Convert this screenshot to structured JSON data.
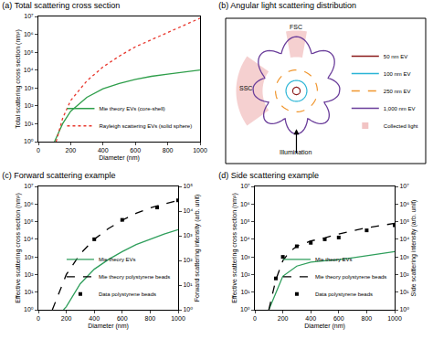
{
  "chart_data": [
    {
      "type": "line",
      "title": "(a) Total scattering cross section",
      "x_label": "Diameter (nm)",
      "y_label": "Total scattering cross section (nm²)",
      "log": "y",
      "grid": false,
      "legend": "lower right",
      "xlim": [
        0,
        1000
      ],
      "xticks": [
        0,
        200,
        400,
        600,
        800,
        1000
      ],
      "ylim": [
        1,
        10000000
      ],
      "yticks": [
        {
          "value": 1,
          "label": "10⁰"
        },
        {
          "value": 10,
          "label": "10¹"
        },
        {
          "value": 100,
          "label": "10²"
        },
        {
          "value": 1000,
          "label": "10³"
        },
        {
          "value": 10000,
          "label": "10⁴"
        },
        {
          "value": 100000,
          "label": "10⁵"
        },
        {
          "value": 1000000,
          "label": "10⁶"
        },
        {
          "value": 10000000,
          "label": "10⁷"
        }
      ],
      "series": [
        {
          "name": "Mie theory EVs (core-shell)",
          "color": "#2e9e4a",
          "line_style": "solid",
          "x": [
            100,
            150,
            200,
            300,
            400,
            500,
            600,
            700,
            800,
            900,
            1000
          ],
          "values": [
            1,
            10,
            50,
            300,
            900,
            1800,
            3000,
            4500,
            6000,
            8000,
            10000
          ]
        },
        {
          "name": "Rayleigh scattering EVs (solid sphere)",
          "color": "#e8382e",
          "line_style": "dotted",
          "x": [
            110,
            150,
            200,
            300,
            400,
            500,
            600,
            700,
            800,
            900,
            1000
          ],
          "values": [
            1,
            20,
            200,
            2500,
            15000,
            60000,
            200000,
            500000,
            1200000,
            3000000,
            8000000
          ]
        }
      ]
    },
    {
      "type": "diagram",
      "title": "(b) Angular light scattering distribution",
      "legend": "right",
      "annotations": [
        "SSC",
        "FSC",
        "Illumination"
      ],
      "series": [
        {
          "name": "50 nm EV",
          "color": "#8b1a1a",
          "line_style": "solid"
        },
        {
          "name": "100 nm EV",
          "color": "#2bb5d6",
          "line_style": "solid"
        },
        {
          "name": "250 nm EV",
          "color": "#f0962e",
          "line_style": "dashed"
        },
        {
          "name": "1,000 nm EV",
          "color": "#6a3d9a",
          "line_style": "solid"
        },
        {
          "name": "Collected light",
          "color": "#f2c4c4",
          "marker": "square"
        }
      ]
    },
    {
      "type": "line",
      "title": "(c) Forward scattering example",
      "x_label": "Diameter (nm)",
      "y_label": "Effective scattering cross section (nm²)",
      "y2_label": "Forward scattering intensity (arb. unit)",
      "log": "y",
      "grid": false,
      "legend": "lower right",
      "xlim": [
        0,
        1000
      ],
      "xticks": [
        0,
        200,
        400,
        600,
        800,
        1000
      ],
      "ylim": [
        1,
        10000000
      ],
      "yticks": [
        {
          "value": 1,
          "label": "10⁰"
        },
        {
          "value": 10,
          "label": "10¹"
        },
        {
          "value": 100,
          "label": "10²"
        },
        {
          "value": 1000,
          "label": "10³"
        },
        {
          "value": 10000,
          "label": "10⁴"
        },
        {
          "value": 100000,
          "label": "10⁵"
        },
        {
          "value": 1000000,
          "label": "10⁶"
        },
        {
          "value": 10000000,
          "label": "10⁷"
        }
      ],
      "y2lim": [
        1,
        100000
      ],
      "y2ticks": [
        {
          "value": 1,
          "label": "10⁰"
        },
        {
          "value": 10,
          "label": "10¹"
        },
        {
          "value": 100,
          "label": "10²"
        },
        {
          "value": 1000,
          "label": "10³"
        },
        {
          "value": 10000,
          "label": "10⁴"
        },
        {
          "value": 100000,
          "label": "10⁵"
        }
      ],
      "series": [
        {
          "name": "Mie theory EVs",
          "color": "#2e9e5b",
          "line_style": "solid",
          "x": [
            180,
            200,
            300,
            400,
            500,
            600,
            700,
            800,
            900,
            1000
          ],
          "values": [
            1,
            1.5,
            30,
            200,
            700,
            2000,
            5000,
            10000,
            20000,
            35000
          ]
        },
        {
          "name": "Mie theory polystyrene beads",
          "color": "#000000",
          "line_style": "dashed",
          "x": [
            100,
            200,
            300,
            400,
            500,
            600,
            700,
            800,
            900,
            1000
          ],
          "values": [
            1,
            100,
            1500,
            10000,
            40000,
            120000,
            300000,
            600000,
            1000000,
            1600000
          ]
        },
        {
          "name": "Data polystyrene beads",
          "color": "#000000",
          "type": "scatter",
          "marker": "square",
          "axis": "y2",
          "x": [
            400,
            600,
            850,
            1000
          ],
          "values": [
            720,
            4400,
            14000,
            27000
          ]
        }
      ]
    },
    {
      "type": "line",
      "title": "(d) Side scattering example",
      "x_label": "Diameter (nm)",
      "y_label": "Effective scattering cross section (nm²)",
      "y2_label": "Side scattering intensity (arb. unit)",
      "log": "y",
      "grid": false,
      "legend": "lower right",
      "xlim": [
        0,
        1000
      ],
      "xticks": [
        0,
        200,
        400,
        600,
        800,
        1000
      ],
      "ylim": [
        1,
        10000000
      ],
      "yticks": [
        {
          "value": 1,
          "label": "10⁰"
        },
        {
          "value": 10,
          "label": "10¹"
        },
        {
          "value": 100,
          "label": "10²"
        },
        {
          "value": 1000,
          "label": "10³"
        },
        {
          "value": 10000,
          "label": "10⁴"
        },
        {
          "value": 100000,
          "label": "10⁵"
        },
        {
          "value": 1000000,
          "label": "10⁶"
        },
        {
          "value": 10000000,
          "label": "10⁷"
        }
      ],
      "y2lim": [
        1,
        10000000
      ],
      "y2ticks": [
        {
          "value": 1,
          "label": "10⁰"
        },
        {
          "value": 10,
          "label": "10¹"
        },
        {
          "value": 100,
          "label": "10²"
        },
        {
          "value": 1000,
          "label": "10³"
        },
        {
          "value": 10000,
          "label": "10⁴"
        },
        {
          "value": 100000,
          "label": "10⁵"
        },
        {
          "value": 1000000,
          "label": "10⁶"
        },
        {
          "value": 10000000,
          "label": "10⁷"
        }
      ],
      "series": [
        {
          "name": "Mie theory EVs",
          "color": "#2e9e5b",
          "line_style": "solid",
          "x": [
            100,
            150,
            200,
            300,
            400,
            500,
            600,
            700,
            800,
            900,
            1000
          ],
          "values": [
            1,
            10,
            80,
            300,
            500,
            600,
            700,
            900,
            1200,
            1600,
            2000
          ]
        },
        {
          "name": "Mie theory polystyrene beads",
          "color": "#000000",
          "line_style": "dashed",
          "x": [
            100,
            150,
            200,
            250,
            300,
            400,
            500,
            600,
            700,
            800,
            900,
            1000
          ],
          "values": [
            1,
            50,
            600,
            2000,
            4000,
            8000,
            12000,
            20000,
            30000,
            45000,
            60000,
            80000
          ]
        },
        {
          "name": "Data polystyrene beads",
          "color": "#000000",
          "type": "scatter",
          "marker": "square",
          "axis": "y2",
          "x": [
            150,
            200,
            300,
            400,
            500,
            600,
            800,
            1000
          ],
          "values": [
            60,
            1000,
            4000,
            6300,
            10000,
            12600,
            32000,
            63000
          ]
        }
      ]
    }
  ]
}
